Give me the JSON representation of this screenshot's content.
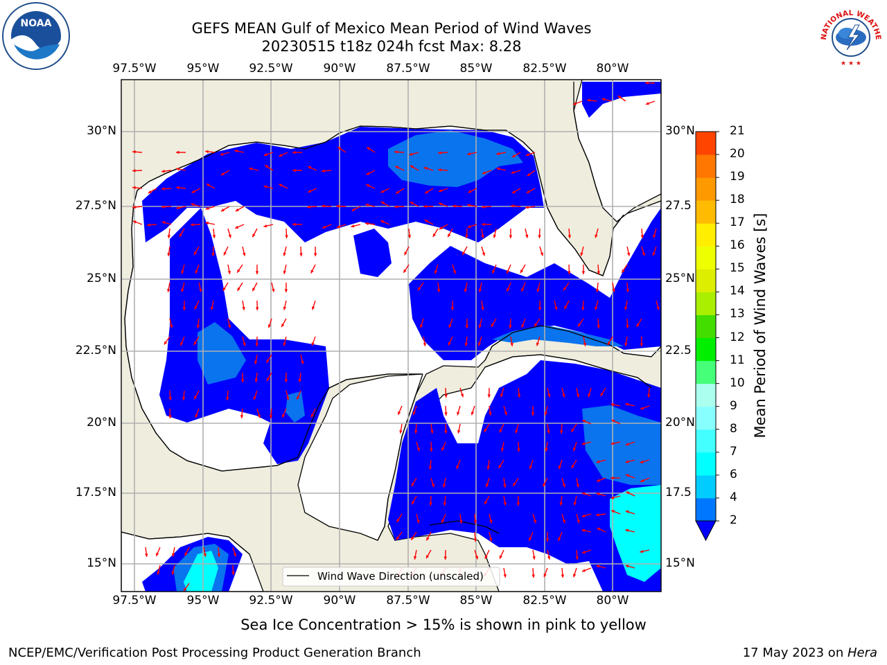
{
  "header": {
    "title_line1": "GEFS MEAN Gulf of Mexico Mean Period of Wind Waves",
    "title_line2": "20230515 t18z 024h fcst   Max: 8.28"
  },
  "logos": {
    "left": "NOAA",
    "right": "NATIONAL WEATHER SERVICE"
  },
  "map": {
    "lon_ticks": [
      "97.5°W",
      "95°W",
      "92.5°W",
      "90°W",
      "87.5°W",
      "85°W",
      "82.5°W",
      "80°W"
    ],
    "lat_ticks_left": [
      "30°N",
      "27.5°N",
      "25°N",
      "22.5°N",
      "20°N",
      "17.5°N",
      "15°N"
    ],
    "lat_ticks_right": [
      "30°N",
      "27.5",
      "25°N",
      "22.5",
      "20°N",
      "17.5",
      "15°N"
    ],
    "legend_label": "Wind Wave Direction (unscaled)",
    "ocean_no_data_color": "#ffffff",
    "land_color": "#efedde"
  },
  "colorbar": {
    "label": "Mean Period of Wind Waves [s]",
    "ticks": [
      "2",
      "4",
      "6",
      "7",
      "8",
      "9",
      "10",
      "11",
      "12",
      "13",
      "14",
      "15",
      "16",
      "17",
      "18",
      "19",
      "20",
      "21"
    ],
    "colors": [
      "#0077ff",
      "#00ccff",
      "#00ffff",
      "#44ffff",
      "#88ffff",
      "#aaffee",
      "#44ff77",
      "#00ee00",
      "#44dd00",
      "#aaee00",
      "#ddee00",
      "#eeff00",
      "#ffee00",
      "#ffbb00",
      "#ff9900",
      "#ff7700",
      "#ff4400",
      "#ff1100",
      "#ff0000"
    ],
    "extend_color": "#0000ff"
  },
  "notes": {
    "ice": "Sea Ice Concentration > 15% is shown in pink to yellow"
  },
  "footer": {
    "left": "NCEP/EMC/Verification Post Processing Product Generation Branch",
    "right_date": "17 May 2023 on ",
    "right_machine": "Hera"
  }
}
